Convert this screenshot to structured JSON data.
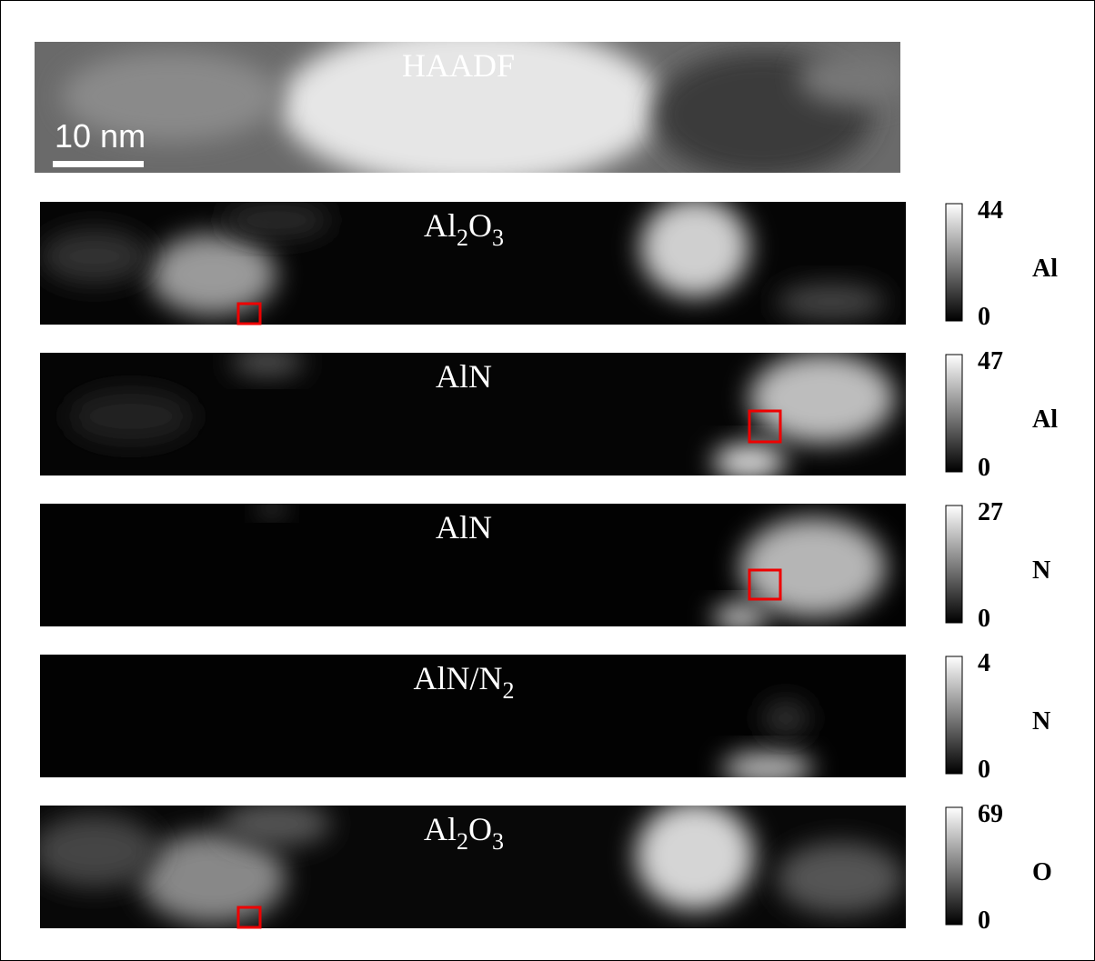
{
  "scale_bar": "10 nm",
  "panels": [
    {
      "label": [
        {
          "text": "HAADF"
        }
      ]
    },
    {
      "label": [
        {
          "text": "Al"
        },
        {
          "text": "2",
          "sub": true
        },
        {
          "text": "O"
        },
        {
          "text": "3",
          "sub": true
        }
      ],
      "max": "44",
      "min": "0",
      "element": "Al"
    },
    {
      "label": [
        {
          "text": "AlN"
        }
      ],
      "max": "47",
      "min": "0",
      "element": "Al"
    },
    {
      "label": [
        {
          "text": "AlN"
        }
      ],
      "max": "27",
      "min": "0",
      "element": "N"
    },
    {
      "label": [
        {
          "text": "AlN/N"
        },
        {
          "text": "2",
          "sub": true
        }
      ],
      "max": "4",
      "min": "0",
      "element": "N"
    },
    {
      "label": [
        {
          "text": "Al"
        },
        {
          "text": "2",
          "sub": true
        },
        {
          "text": "O"
        },
        {
          "text": "3",
          "sub": true
        }
      ],
      "max": "69",
      "min": "0",
      "element": "O"
    }
  ]
}
